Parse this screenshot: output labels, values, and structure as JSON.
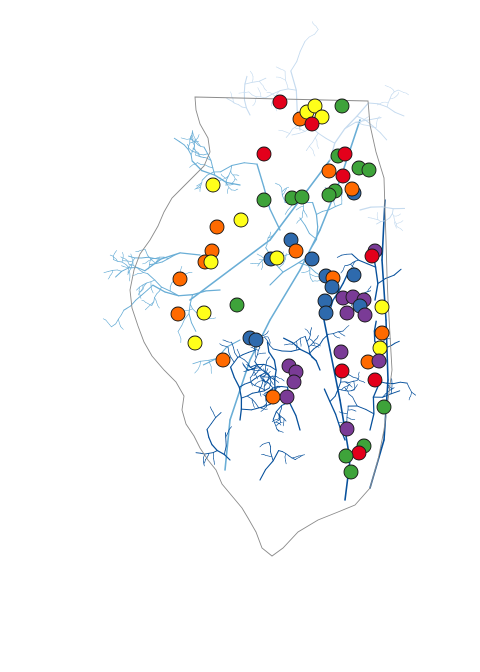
{
  "map": {
    "region": "Illinois",
    "colors": {
      "state_outline": "#8c8c8c",
      "rivers_light": "#c6dbef",
      "rivers_mid": "#6aaed6",
      "rivers_dark": "#08519c",
      "site_red": "#e3001b",
      "site_orange": "#ff6a00",
      "site_yellow": "#ffff1a",
      "site_green": "#3ea33a",
      "site_blue": "#2e6aad",
      "site_purple": "#7a3b96",
      "marker_stroke": "#1a1a1a"
    },
    "site_category_counts": {
      "red": 8,
      "orange": 16,
      "yellow": 12,
      "green": 17,
      "blue": 13,
      "purple": 12
    }
  }
}
